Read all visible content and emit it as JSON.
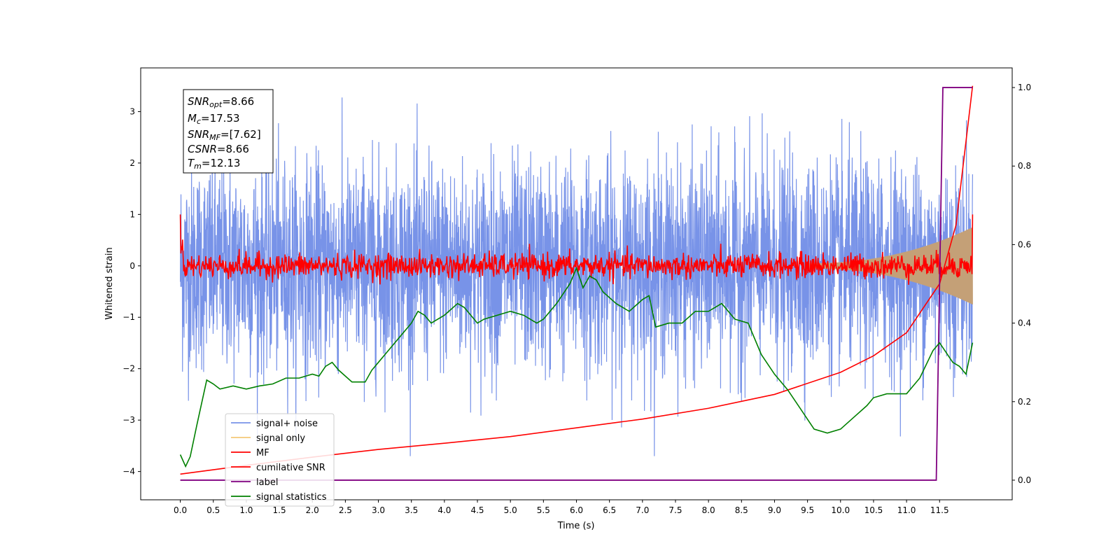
{
  "chart_data": {
    "type": "line",
    "xlabel": "Time (s)",
    "ylabel": "Whitened strain",
    "xlim": [
      -0.6,
      12.6
    ],
    "ylim": [
      -4.55,
      3.85
    ],
    "y2lim": [
      -0.05,
      1.05
    ],
    "xticks": [
      "0.0",
      "0.5",
      "1.0",
      "1.5",
      "2.0",
      "2.5",
      "3.0",
      "3.5",
      "4.0",
      "4.5",
      "5.0",
      "5.5",
      "6.0",
      "6.5",
      "7.0",
      "7.5",
      "8.0",
      "8.5",
      "9.0",
      "9.5",
      "10.0",
      "10.5",
      "11.0",
      "11.5"
    ],
    "yticks": [
      "−4",
      "−3",
      "−2",
      "−1",
      "0",
      "1",
      "2",
      "3"
    ],
    "y2ticks": [
      "0.0",
      "0.2",
      "0.4",
      "0.6",
      "0.8",
      "1.0"
    ],
    "grid": false,
    "legend_position": "lower-left",
    "colors": {
      "signal_noise": "#7893e8",
      "signal_only": "#f5c878",
      "signal_band": "#c4a077",
      "mf": "#ff0000",
      "cumulative_snr": "#ff0000",
      "label": "#800080",
      "signal_statistics": "#008000"
    },
    "annotations": {
      "snr_opt": {
        "main": "SNR",
        "sub": "opt",
        "value": "=8.66"
      },
      "mc": {
        "main": "M",
        "sub": "c",
        "value": "=17.53"
      },
      "snr_mf": {
        "main": "SNR",
        "sub": "MF",
        "value": "=[7.62]"
      },
      "csnr": {
        "main": "CSNR",
        "sub": "",
        "value": "=8.66"
      },
      "tm": {
        "main": "T",
        "sub": "m",
        "value": "=12.13"
      }
    },
    "legend": [
      "signal+ noise",
      "signal only",
      "MF",
      "cumilative SNR",
      "label",
      "signal statistics"
    ],
    "series": [
      {
        "name": "signal+ noise",
        "axis": "left",
        "description_values": {
          "center": 0.0,
          "spread": 1.0,
          "t_range": [
            0.0,
            12.0
          ]
        }
      },
      {
        "name": "signal only",
        "axis": "left",
        "chirp": {
          "t_start": 9.5,
          "t_end": 12.0,
          "amp_start": 0.05,
          "amp_end": 0.75
        }
      },
      {
        "name": "MF",
        "axis": "left",
        "start_value": 1.0,
        "end_value": 1.0,
        "typical": 0.0,
        "spread": 0.12
      },
      {
        "name": "cumilative SNR",
        "axis": "left",
        "x": [
          0.0,
          1.0,
          2.0,
          3.0,
          4.0,
          5.0,
          6.0,
          7.0,
          8.0,
          9.0,
          10.0,
          10.5,
          11.0,
          11.5,
          11.75,
          12.0
        ],
        "y": [
          -4.05,
          -3.88,
          -3.72,
          -3.57,
          -3.45,
          -3.32,
          -3.15,
          -2.98,
          -2.77,
          -2.5,
          -2.07,
          -1.75,
          -1.3,
          -0.35,
          0.8,
          3.5
        ]
      },
      {
        "name": "label",
        "axis": "right",
        "x": [
          0.0,
          11.45,
          11.55,
          12.0
        ],
        "y": [
          0.0,
          0.0,
          1.0,
          1.0
        ]
      },
      {
        "name": "signal statistics",
        "axis": "right",
        "x": [
          0.0,
          0.08,
          0.15,
          0.25,
          0.4,
          0.5,
          0.6,
          0.8,
          1.0,
          1.2,
          1.4,
          1.6,
          1.8,
          2.0,
          2.1,
          2.2,
          2.3,
          2.4,
          2.6,
          2.8,
          2.9,
          3.0,
          3.2,
          3.4,
          3.5,
          3.6,
          3.7,
          3.8,
          4.0,
          4.2,
          4.3,
          4.5,
          4.6,
          4.8,
          5.0,
          5.2,
          5.4,
          5.5,
          5.7,
          5.9,
          6.0,
          6.1,
          6.2,
          6.3,
          6.4,
          6.6,
          6.8,
          7.0,
          7.1,
          7.2,
          7.4,
          7.6,
          7.8,
          8.0,
          8.2,
          8.4,
          8.6,
          8.8,
          9.0,
          9.2,
          9.4,
          9.6,
          9.8,
          10.0,
          10.2,
          10.4,
          10.5,
          10.7,
          11.0,
          11.2,
          11.4,
          11.5,
          11.7,
          11.8,
          11.9,
          12.0
        ],
        "y": [
          0.065,
          0.035,
          0.06,
          0.14,
          0.255,
          0.245,
          0.232,
          0.24,
          0.232,
          0.24,
          0.245,
          0.26,
          0.26,
          0.27,
          0.265,
          0.29,
          0.3,
          0.28,
          0.25,
          0.25,
          0.28,
          0.3,
          0.34,
          0.38,
          0.4,
          0.43,
          0.42,
          0.4,
          0.42,
          0.45,
          0.44,
          0.4,
          0.41,
          0.42,
          0.43,
          0.42,
          0.4,
          0.41,
          0.45,
          0.5,
          0.54,
          0.49,
          0.52,
          0.51,
          0.48,
          0.45,
          0.43,
          0.46,
          0.47,
          0.39,
          0.4,
          0.4,
          0.43,
          0.43,
          0.45,
          0.41,
          0.4,
          0.32,
          0.27,
          0.23,
          0.18,
          0.13,
          0.12,
          0.13,
          0.16,
          0.19,
          0.21,
          0.22,
          0.22,
          0.26,
          0.33,
          0.35,
          0.3,
          0.29,
          0.27,
          0.35
        ]
      }
    ]
  }
}
